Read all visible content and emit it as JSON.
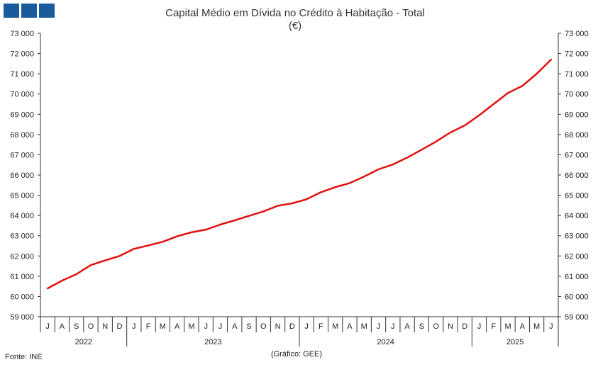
{
  "logo": {
    "squares": 3,
    "color": "#1a5b9c"
  },
  "footer": {
    "source": "Fonte: INE",
    "credit": "(Gráfico: GEE)"
  },
  "chart_data": {
    "type": "line",
    "title": "Capital Médio em Dívida no Crédito à Habitação - Total",
    "subtitle": "(€)",
    "xlabel": "",
    "ylabel": "",
    "ylim": [
      59000,
      73000
    ],
    "yticks": [
      59000,
      60000,
      61000,
      62000,
      63000,
      64000,
      65000,
      66000,
      67000,
      68000,
      69000,
      70000,
      71000,
      72000,
      73000
    ],
    "ytick_labels": [
      "59 000",
      "60 000",
      "61 000",
      "62 000",
      "63 000",
      "64 000",
      "65 000",
      "66 000",
      "67 000",
      "68 000",
      "69 000",
      "70 000",
      "71 000",
      "72 000",
      "73 000"
    ],
    "grid": false,
    "categories": [
      "J",
      "A",
      "S",
      "O",
      "N",
      "D",
      "J",
      "F",
      "M",
      "A",
      "M",
      "J",
      "J",
      "A",
      "S",
      "O",
      "N",
      "D",
      "J",
      "F",
      "M",
      "A",
      "M",
      "J",
      "J",
      "A",
      "S",
      "O",
      "N",
      "D",
      "J",
      "F",
      "M",
      "A",
      "M",
      "J"
    ],
    "years": [
      {
        "label": "2022",
        "start": 0,
        "count": 6
      },
      {
        "label": "2023",
        "start": 6,
        "count": 12
      },
      {
        "label": "2024",
        "start": 18,
        "count": 12
      },
      {
        "label": "2025",
        "start": 30,
        "count": 6
      }
    ],
    "series": [
      {
        "color": "#e01010",
        "values": [
          60400,
          60780,
          61100,
          61550,
          61780,
          62000,
          62350,
          62520,
          62700,
          62970,
          63170,
          63300,
          63550,
          63760,
          63980,
          64200,
          64480,
          64600,
          64800,
          65150,
          65400,
          65600,
          65920,
          66280,
          66520,
          66860,
          67250,
          67650,
          68100,
          68450,
          68950,
          69500,
          70050,
          70400,
          71000,
          71700
        ]
      }
    ]
  }
}
